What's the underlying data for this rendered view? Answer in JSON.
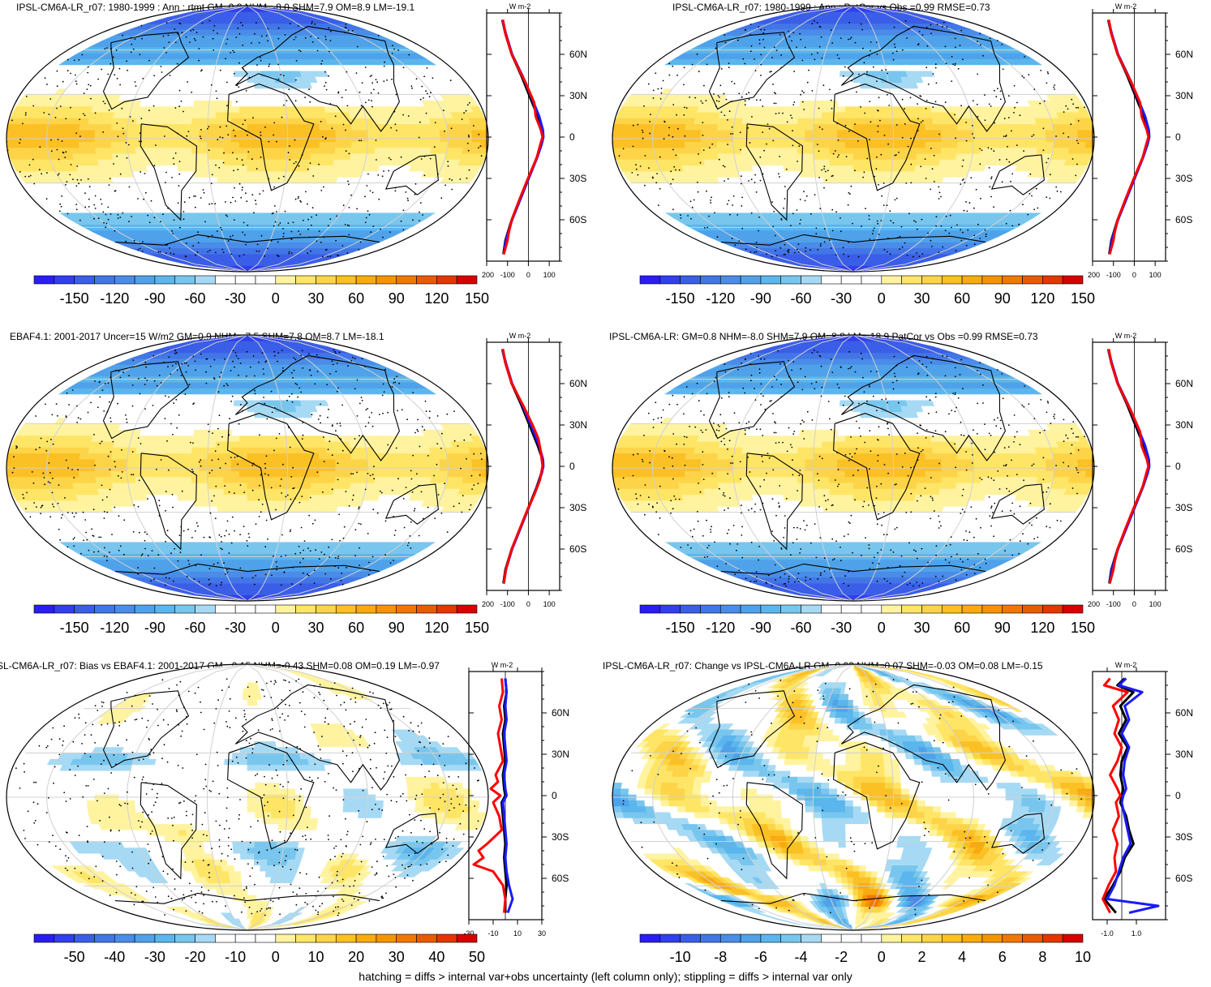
{
  "chart_data": [
    {
      "type": "heatmap",
      "title": "IPSL-CM6A-LR_r07: 1980-1999 : Ann : rtmt GM=0.8 NHM=-8.0 SHM=7.9 OM=8.9 LM=-19.1",
      "profile_unit": "W m-2",
      "lat_ticks": [
        "60N",
        "30N",
        "0",
        "30S",
        "60S"
      ],
      "profile_x_ticks": [
        "-200",
        "-100",
        "0",
        "100"
      ],
      "colorbar_labels": [
        "-150",
        "-120",
        "-90",
        "-60",
        "-30",
        "0",
        "30",
        "60",
        "90",
        "120",
        "150"
      ],
      "colorbar_range": [
        -160,
        160
      ],
      "pattern": "mean",
      "profile_xlim": [
        -200,
        150
      ],
      "profile_series": [
        {
          "color": "#000000",
          "lat": [
            85,
            75,
            60,
            45,
            30,
            15,
            5,
            0,
            -5,
            -15,
            -30,
            -45,
            -60,
            -75,
            -85
          ],
          "values": [
            -125,
            -110,
            -80,
            -35,
            5,
            45,
            68,
            70,
            62,
            40,
            0,
            -40,
            -80,
            -110,
            -120
          ]
        },
        {
          "color": "#1a1aff",
          "lat": [
            85,
            75,
            60,
            45,
            30,
            15,
            5,
            0,
            -5,
            -15,
            -30,
            -45,
            -60,
            -75,
            -85
          ],
          "values": [
            -125,
            -108,
            -78,
            -30,
            12,
            52,
            70,
            72,
            64,
            42,
            2,
            -38,
            -78,
            -108,
            -118
          ]
        },
        {
          "color": "#ff0000",
          "lat": [
            85,
            75,
            60,
            45,
            40,
            33,
            25,
            15,
            5,
            0,
            -5,
            -15,
            -30,
            -45,
            -60,
            -70,
            -75,
            -85
          ],
          "values": [
            -122,
            -110,
            -80,
            -32,
            -15,
            5,
            28,
            35,
            60,
            68,
            58,
            40,
            -2,
            -42,
            -80,
            -95,
            -100,
            -118
          ]
        }
      ]
    },
    {
      "type": "heatmap",
      "title": "IPSL-CM6A-LR_r07: 1980-1999 : Ann : PatCor vs Obs =0.99 RMSE=0.73",
      "profile_unit": "W m-2",
      "lat_ticks": [
        "60N",
        "30N",
        "0",
        "30S",
        "60S"
      ],
      "profile_x_ticks": [
        "-200",
        "-100",
        "0",
        "100"
      ],
      "colorbar_labels": [
        "-150",
        "-120",
        "-90",
        "-60",
        "-30",
        "0",
        "30",
        "60",
        "90",
        "120",
        "150"
      ],
      "colorbar_range": [
        -160,
        160
      ],
      "pattern": "mean",
      "profile_xlim": [
        -200,
        150
      ],
      "profile_series": [
        {
          "color": "#000000",
          "lat": [
            85,
            75,
            60,
            45,
            30,
            15,
            5,
            0,
            -5,
            -15,
            -30,
            -45,
            -60,
            -75,
            -85
          ],
          "values": [
            -125,
            -110,
            -80,
            -35,
            5,
            45,
            68,
            70,
            62,
            40,
            0,
            -40,
            -80,
            -110,
            -120
          ]
        },
        {
          "color": "#1a1aff",
          "lat": [
            85,
            75,
            60,
            45,
            30,
            15,
            5,
            0,
            -5,
            -15,
            -30,
            -45,
            -60,
            -75,
            -85
          ],
          "values": [
            -125,
            -108,
            -78,
            -30,
            12,
            52,
            70,
            72,
            64,
            42,
            2,
            -38,
            -78,
            -108,
            -118
          ]
        },
        {
          "color": "#ff0000",
          "lat": [
            85,
            75,
            60,
            45,
            40,
            33,
            25,
            15,
            5,
            0,
            -5,
            -15,
            -30,
            -45,
            -60,
            -70,
            -75,
            -85
          ],
          "values": [
            -122,
            -110,
            -80,
            -32,
            -15,
            5,
            28,
            35,
            60,
            68,
            58,
            40,
            -2,
            -42,
            -80,
            -95,
            -100,
            -118
          ]
        }
      ]
    },
    {
      "type": "heatmap",
      "title": "EBAF4.1: 2001-2017 Uncer=15 W/m2 GM=0.9 NHM=-7.5 SHM=7.8 OM=8.7 LM=-18.1",
      "profile_unit": "W m-2",
      "lat_ticks": [
        "60N",
        "30N",
        "0",
        "30S",
        "60S"
      ],
      "profile_x_ticks": [
        "-200",
        "-100",
        "0",
        "100"
      ],
      "colorbar_labels": [
        "-150",
        "-120",
        "-90",
        "-60",
        "-30",
        "0",
        "30",
        "60",
        "90",
        "120",
        "150"
      ],
      "colorbar_range": [
        -160,
        160
      ],
      "pattern": "mean",
      "profile_xlim": [
        -200,
        150
      ],
      "profile_series": [
        {
          "color": "#000000",
          "lat": [
            85,
            75,
            60,
            45,
            30,
            15,
            5,
            0,
            -5,
            -15,
            -30,
            -45,
            -60,
            -75,
            -85
          ],
          "values": [
            -125,
            -110,
            -80,
            -35,
            5,
            45,
            68,
            70,
            62,
            40,
            0,
            -40,
            -80,
            -110,
            -120
          ]
        },
        {
          "color": "#1a1aff",
          "lat": [
            85,
            75,
            60,
            45,
            30,
            15,
            5,
            0,
            -5,
            -15,
            -30,
            -45,
            -60,
            -75,
            -85
          ],
          "values": [
            -125,
            -108,
            -78,
            -30,
            12,
            52,
            70,
            72,
            64,
            42,
            2,
            -38,
            -78,
            -108,
            -118
          ]
        },
        {
          "color": "#ff0000",
          "lat": [
            85,
            75,
            60,
            45,
            38,
            30,
            20,
            10,
            0,
            -10,
            -20,
            -30,
            -45,
            -60,
            -75,
            -85
          ],
          "values": [
            -122,
            -110,
            -80,
            -28,
            -5,
            20,
            48,
            60,
            68,
            55,
            30,
            0,
            -40,
            -80,
            -108,
            -118
          ]
        }
      ]
    },
    {
      "type": "heatmap",
      "title": "IPSL-CM6A-LR: GM=0.8 NHM=-8.0 SHM=7.9 OM=8.8 LM=-18.9 PatCor vs Obs =0.99 RMSE=0.73",
      "profile_unit": "W m-2",
      "lat_ticks": [
        "60N",
        "30N",
        "0",
        "30S",
        "60S"
      ],
      "profile_x_ticks": [
        "-200",
        "-100",
        "0",
        "100"
      ],
      "colorbar_labels": [
        "-150",
        "-120",
        "-90",
        "-60",
        "-30",
        "0",
        "30",
        "60",
        "90",
        "120",
        "150"
      ],
      "colorbar_range": [
        -160,
        160
      ],
      "pattern": "mean",
      "profile_xlim": [
        -200,
        150
      ],
      "profile_series": [
        {
          "color": "#000000",
          "lat": [
            85,
            75,
            60,
            45,
            30,
            15,
            5,
            0,
            -5,
            -15,
            -30,
            -45,
            -60,
            -75,
            -85
          ],
          "values": [
            -125,
            -110,
            -80,
            -35,
            5,
            45,
            68,
            70,
            62,
            40,
            0,
            -40,
            -80,
            -110,
            -120
          ]
        },
        {
          "color": "#1a1aff",
          "lat": [
            85,
            75,
            60,
            45,
            30,
            15,
            5,
            0,
            -5,
            -15,
            -30,
            -45,
            -60,
            -75,
            -85
          ],
          "values": [
            -125,
            -108,
            -78,
            -30,
            12,
            52,
            70,
            72,
            64,
            42,
            2,
            -38,
            -78,
            -108,
            -118
          ]
        },
        {
          "color": "#ff0000",
          "lat": [
            85,
            75,
            60,
            45,
            40,
            33,
            25,
            15,
            5,
            0,
            -5,
            -15,
            -30,
            -45,
            -60,
            -70,
            -75,
            -85
          ],
          "values": [
            -122,
            -110,
            -80,
            -32,
            -15,
            5,
            28,
            35,
            60,
            68,
            58,
            40,
            -2,
            -42,
            -80,
            -95,
            -100,
            -118
          ]
        }
      ]
    },
    {
      "type": "heatmap",
      "title": "SL-CM6A-LR_r07: Bias vs EBAF4.1: 2001-2017 GM=-0.15 NHM=-0.43 SHM=0.08 OM=0.19 LM=-0.97",
      "profile_unit": "W m-2",
      "lat_ticks": [
        "60N",
        "30N",
        "0",
        "30S",
        "60S"
      ],
      "profile_x_ticks": [
        "-30",
        "-10",
        "10",
        "30"
      ],
      "colorbar_labels": [
        "-50",
        "-40",
        "-30",
        "-20",
        "-10",
        "0",
        "10",
        "20",
        "30",
        "40",
        "50"
      ],
      "colorbar_range": [
        -55,
        55
      ],
      "pattern": "bias",
      "profile_xlim": [
        -30,
        30
      ],
      "profile_series": [
        {
          "color": "#000000",
          "lat": [
            85,
            75,
            65,
            55,
            45,
            35,
            25,
            15,
            5,
            0,
            -5,
            -15,
            -25,
            -35,
            -45,
            -55,
            -65,
            -75,
            -85
          ],
          "values": [
            0,
            1,
            -1,
            0,
            -2,
            -1,
            0,
            -2,
            -1,
            0,
            -3,
            -2,
            -1,
            0,
            -1,
            0,
            1,
            0,
            0
          ]
        },
        {
          "color": "#1a1aff",
          "lat": [
            85,
            75,
            65,
            55,
            45,
            35,
            25,
            15,
            5,
            0,
            -5,
            -15,
            -25,
            -35,
            -45,
            -55,
            -65,
            -75,
            -85
          ],
          "values": [
            0,
            1,
            0,
            1,
            -1,
            0,
            1,
            -1,
            0,
            1,
            -2,
            -1,
            0,
            1,
            0,
            1,
            3,
            6,
            2
          ]
        },
        {
          "color": "#ff0000",
          "lat": [
            85,
            75,
            65,
            55,
            45,
            35,
            25,
            15,
            10,
            5,
            0,
            -5,
            -15,
            -25,
            -35,
            -40,
            -45,
            -50,
            -55,
            -65,
            -75,
            -85
          ],
          "values": [
            -3,
            -2,
            -5,
            -3,
            -6,
            -4,
            -2,
            -8,
            -6,
            -12,
            -4,
            -10,
            -5,
            -3,
            -15,
            -22,
            -18,
            -26,
            -10,
            -2,
            0,
            -1
          ]
        }
      ]
    },
    {
      "type": "heatmap",
      "title": "IPSL-CM6A-LR_r07: Change vs IPSL-CM6A-LR GM=0.02 NHM=0.07 SHM=-0.03 OM=0.08 LM=-0.15",
      "profile_unit": "W m-2",
      "lat_ticks": [
        "60N",
        "30N",
        "0",
        "30S",
        "60S"
      ],
      "profile_x_ticks": [
        "-1.0",
        "1.0"
      ],
      "colorbar_labels": [
        "-10",
        "-8",
        "-6",
        "-4",
        "-2",
        "0",
        "2",
        "4",
        "6",
        "8",
        "10"
      ],
      "colorbar_range": [
        -11,
        11
      ],
      "pattern": "change",
      "profile_xlim": [
        -2,
        3
      ],
      "profile_series": [
        {
          "color": "#000000",
          "lat": [
            85,
            80,
            75,
            65,
            55,
            45,
            35,
            25,
            15,
            5,
            0,
            -5,
            -15,
            -25,
            -35,
            -45,
            -55,
            -65,
            -75,
            -85
          ],
          "values": [
            0.2,
            -0.3,
            0.8,
            -0.1,
            0.3,
            -0.2,
            0.4,
            0.0,
            -0.1,
            0.1,
            0.0,
            -0.1,
            0.3,
            0.5,
            0.8,
            0.2,
            -0.1,
            -0.6,
            -1.2,
            -0.4
          ]
        },
        {
          "color": "#1a1aff",
          "lat": [
            85,
            80,
            75,
            65,
            55,
            45,
            35,
            25,
            15,
            5,
            0,
            -5,
            -15,
            -25,
            -35,
            -45,
            -55,
            -65,
            -75,
            -80,
            -85
          ],
          "values": [
            0.3,
            -0.2,
            1.4,
            0.2,
            0.5,
            0.0,
            0.5,
            0.2,
            0.1,
            0.3,
            0.1,
            0.0,
            0.2,
            0.4,
            0.6,
            0.1,
            -0.2,
            -0.5,
            -1.0,
            2.5,
            0.5
          ]
        },
        {
          "color": "#ff0000",
          "lat": [
            85,
            80,
            75,
            65,
            55,
            45,
            35,
            25,
            15,
            5,
            0,
            -5,
            -15,
            -25,
            -35,
            -45,
            -55,
            -65,
            -75,
            -85
          ],
          "values": [
            -0.8,
            -1.2,
            0.4,
            -0.6,
            -0.2,
            -0.5,
            0.0,
            -0.3,
            -0.8,
            -0.3,
            -0.1,
            -0.4,
            -0.2,
            -0.6,
            -0.3,
            -0.5,
            -0.4,
            -0.9,
            -1.3,
            -0.8
          ]
        }
      ]
    }
  ],
  "footer": "hatching = diffs > internal var+obs uncertainty (left column only); stippling = diffs > internal var only"
}
